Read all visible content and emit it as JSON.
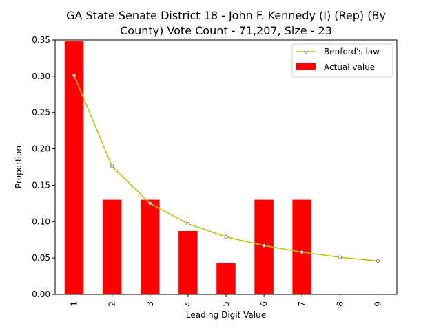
{
  "chart_data": {
    "type": "bar",
    "title_lines": [
      "GA State Senate District 18 - John F. Kennedy (I) (Rep) (By",
      "County) Vote Count - 71,207, Size - 23"
    ],
    "xlabel": "Leading Digit Value",
    "ylabel": "Proportion",
    "categories": [
      "1",
      "2",
      "3",
      "4",
      "5",
      "6",
      "7",
      "8",
      "9"
    ],
    "ylim": [
      0,
      0.35
    ],
    "yticks": [
      "0.00",
      "0.05",
      "0.10",
      "0.15",
      "0.20",
      "0.25",
      "0.30",
      "0.35"
    ],
    "grid": false,
    "legend_position": "top-right",
    "series": [
      {
        "name": "Benford's law",
        "kind": "line",
        "color": "#bfbf00",
        "marker_color": "#808080",
        "values": [
          0.301,
          0.176,
          0.125,
          0.097,
          0.079,
          0.067,
          0.058,
          0.051,
          0.046
        ]
      },
      {
        "name": "Actual value",
        "kind": "bar",
        "color": "#ff0000",
        "values": [
          0.348,
          0.13,
          0.13,
          0.087,
          0.043,
          0.13,
          0.13,
          0,
          0
        ]
      }
    ]
  }
}
